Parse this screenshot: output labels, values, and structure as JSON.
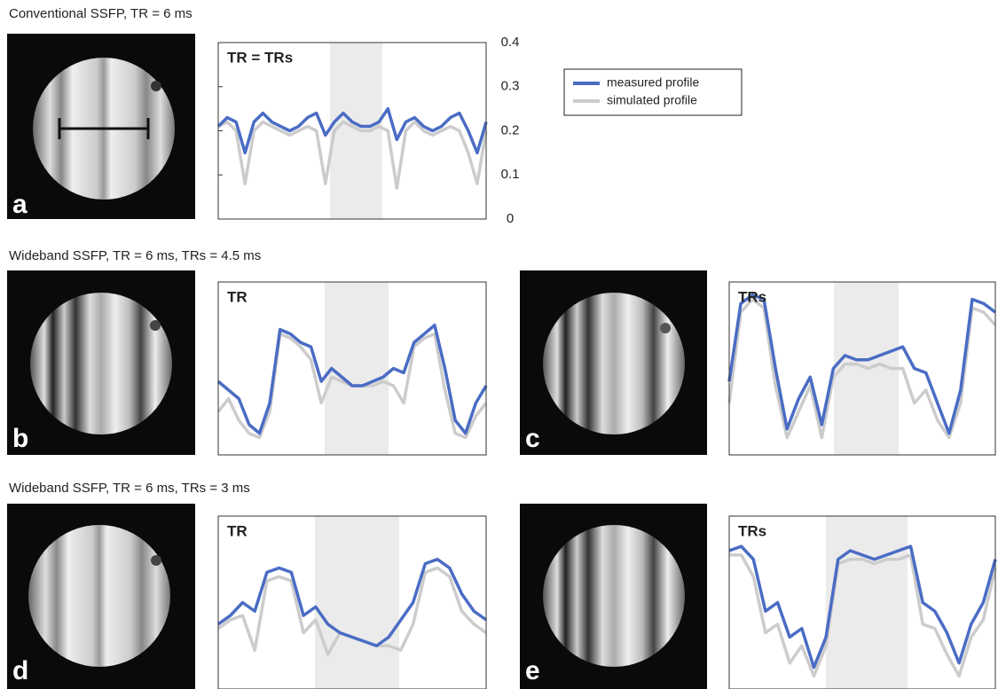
{
  "sections": [
    "Conventional SSFP, TR = 6 ms",
    "Wideband SSFP, TR = 6 ms, TRs = 4.5 ms",
    "Wideband SSFP, TR = 6 ms, TRs = 3 ms"
  ],
  "panels": [
    "a",
    "b",
    "c",
    "d",
    "e"
  ],
  "chart_data": [
    {
      "type": "line",
      "title": "TR = TRs",
      "ylim": [
        0,
        0.4
      ],
      "yticks": [
        0,
        0.1,
        0.2,
        0.3,
        0.4
      ],
      "series": [
        {
          "name": "measured profile",
          "color": "#4a6cc4",
          "values": [
            0.21,
            0.23,
            0.22,
            0.15,
            0.22,
            0.24,
            0.22,
            0.21,
            0.2,
            0.21,
            0.23,
            0.24,
            0.19,
            0.22,
            0.24,
            0.22,
            0.21,
            0.21,
            0.22,
            0.25,
            0.18,
            0.22,
            0.23,
            0.21,
            0.2,
            0.21,
            0.23,
            0.24,
            0.2,
            0.15,
            0.22
          ]
        },
        {
          "name": "simulated profile",
          "color": "#cccccc",
          "values": [
            0.21,
            0.22,
            0.2,
            0.08,
            0.2,
            0.22,
            0.21,
            0.2,
            0.19,
            0.2,
            0.21,
            0.2,
            0.08,
            0.2,
            0.22,
            0.21,
            0.2,
            0.2,
            0.21,
            0.2,
            0.07,
            0.2,
            0.22,
            0.2,
            0.19,
            0.2,
            0.21,
            0.2,
            0.15,
            0.08,
            0.2
          ]
        }
      ]
    },
    {
      "type": "line",
      "title": "TR",
      "ylim": [
        0,
        0.4
      ],
      "series": [
        {
          "color": "#4a6cc4",
          "values": [
            0.17,
            0.15,
            0.13,
            0.07,
            0.05,
            0.12,
            0.29,
            0.28,
            0.26,
            0.25,
            0.17,
            0.2,
            0.18,
            0.16,
            0.16,
            0.17,
            0.18,
            0.2,
            0.19,
            0.26,
            0.28,
            0.3,
            0.2,
            0.08,
            0.05,
            0.12,
            0.16
          ]
        },
        {
          "color": "#cccccc",
          "values": [
            0.1,
            0.13,
            0.08,
            0.05,
            0.04,
            0.1,
            0.28,
            0.27,
            0.25,
            0.22,
            0.12,
            0.18,
            0.17,
            0.16,
            0.16,
            0.16,
            0.17,
            0.16,
            0.12,
            0.25,
            0.27,
            0.28,
            0.15,
            0.05,
            0.04,
            0.09,
            0.12
          ]
        }
      ]
    },
    {
      "type": "line",
      "title": "TRs",
      "ylim": [
        0,
        0.4
      ],
      "series": [
        {
          "color": "#4a6cc4",
          "values": [
            0.17,
            0.35,
            0.37,
            0.36,
            0.2,
            0.06,
            0.13,
            0.18,
            0.07,
            0.2,
            0.23,
            0.22,
            0.22,
            0.23,
            0.24,
            0.25,
            0.2,
            0.19,
            0.12,
            0.05,
            0.15,
            0.36,
            0.35,
            0.33
          ]
        },
        {
          "color": "#cccccc",
          "values": [
            0.12,
            0.33,
            0.36,
            0.34,
            0.16,
            0.04,
            0.1,
            0.16,
            0.04,
            0.18,
            0.21,
            0.21,
            0.2,
            0.21,
            0.2,
            0.2,
            0.12,
            0.15,
            0.08,
            0.04,
            0.12,
            0.34,
            0.33,
            0.3
          ]
        }
      ]
    },
    {
      "type": "line",
      "title": "TR",
      "ylim": [
        0,
        0.4
      ],
      "series": [
        {
          "color": "#4a6cc4",
          "values": [
            0.15,
            0.17,
            0.2,
            0.18,
            0.27,
            0.28,
            0.27,
            0.17,
            0.19,
            0.15,
            0.13,
            0.12,
            0.11,
            0.1,
            0.12,
            0.16,
            0.2,
            0.29,
            0.3,
            0.28,
            0.22,
            0.18,
            0.16
          ]
        },
        {
          "color": "#cccccc",
          "values": [
            0.14,
            0.16,
            0.17,
            0.09,
            0.25,
            0.26,
            0.25,
            0.13,
            0.16,
            0.08,
            0.13,
            0.12,
            0.11,
            0.1,
            0.1,
            0.09,
            0.15,
            0.27,
            0.28,
            0.26,
            0.18,
            0.15,
            0.13
          ]
        }
      ]
    },
    {
      "type": "line",
      "title": "TRs",
      "ylim": [
        0,
        0.4
      ],
      "series": [
        {
          "color": "#4a6cc4",
          "values": [
            0.32,
            0.33,
            0.3,
            0.18,
            0.2,
            0.12,
            0.14,
            0.05,
            0.12,
            0.3,
            0.32,
            0.31,
            0.3,
            0.31,
            0.32,
            0.33,
            0.2,
            0.18,
            0.13,
            0.06,
            0.15,
            0.2,
            0.3
          ]
        },
        {
          "color": "#cccccc",
          "values": [
            0.31,
            0.31,
            0.26,
            0.13,
            0.15,
            0.06,
            0.1,
            0.03,
            0.1,
            0.29,
            0.3,
            0.3,
            0.29,
            0.3,
            0.3,
            0.31,
            0.15,
            0.14,
            0.08,
            0.03,
            0.12,
            0.16,
            0.28
          ]
        }
      ]
    }
  ]
}
